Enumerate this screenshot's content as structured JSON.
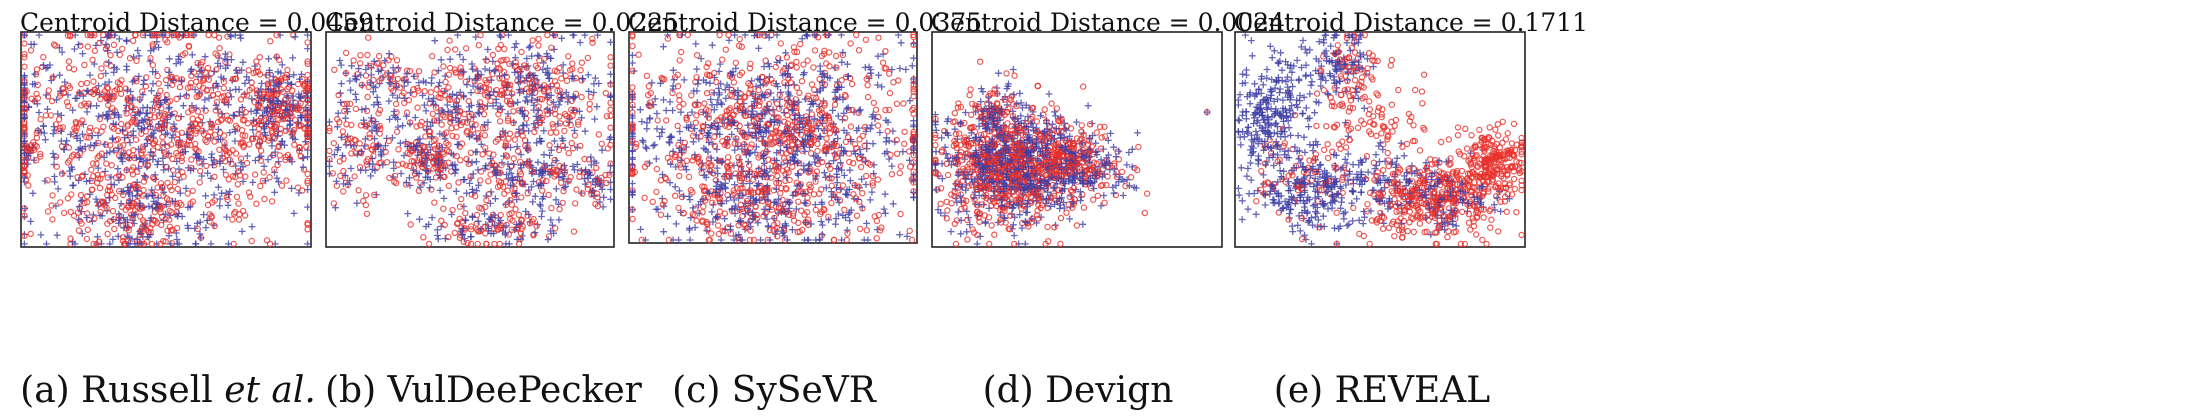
{
  "colors": {
    "series_circle": "#e8302b",
    "series_plus": "#3f3fa6"
  },
  "chart_data": [
    {
      "type": "scatter",
      "id": "a",
      "title": "Centroid Distance = 0.0459",
      "caption": {
        "prefix": "(a) Russell ",
        "emph": "et al.",
        "suffix": ""
      },
      "series": [
        {
          "marker": "circle",
          "color": "#e8302b",
          "count": 950
        },
        {
          "marker": "plus",
          "color": "#3f3fa6",
          "count": 800
        }
      ],
      "clusters": [
        {
          "cx": 0.45,
          "cy": 0.45,
          "sx": 0.28,
          "sy": 0.26,
          "w": 0.75
        },
        {
          "cx": 0.9,
          "cy": 0.35,
          "sx": 0.07,
          "sy": 0.12,
          "w": 0.15
        },
        {
          "cx": 0.4,
          "cy": 0.85,
          "sx": 0.12,
          "sy": 0.08,
          "w": 0.1
        },
        {
          "cx": 0.03,
          "cy": 0.56,
          "sx": 0.012,
          "sy": 0.025,
          "w": 0.01
        }
      ]
    },
    {
      "type": "scatter",
      "id": "b",
      "title": "Centroid Distance = 0.0225",
      "caption": {
        "prefix": "(b) VulDeePecker",
        "emph": "",
        "suffix": ""
      },
      "series": [
        {
          "marker": "circle",
          "color": "#e8302b",
          "count": 700
        },
        {
          "marker": "plus",
          "color": "#3f3fa6",
          "count": 700
        }
      ],
      "clusters": [
        {
          "cx": 0.72,
          "cy": 0.3,
          "sx": 0.14,
          "sy": 0.16,
          "w": 0.3
        },
        {
          "cx": 0.45,
          "cy": 0.35,
          "sx": 0.1,
          "sy": 0.13,
          "w": 0.15
        },
        {
          "cx": 0.12,
          "cy": 0.5,
          "sx": 0.07,
          "sy": 0.18,
          "w": 0.12
        },
        {
          "cx": 0.35,
          "cy": 0.6,
          "sx": 0.06,
          "sy": 0.08,
          "w": 0.1
        },
        {
          "cx": 0.68,
          "cy": 0.68,
          "sx": 0.14,
          "sy": 0.07,
          "w": 0.15
        },
        {
          "cx": 0.6,
          "cy": 0.92,
          "sx": 0.12,
          "sy": 0.05,
          "w": 0.1
        },
        {
          "cx": 0.95,
          "cy": 0.7,
          "sx": 0.03,
          "sy": 0.06,
          "w": 0.04
        },
        {
          "cx": 0.2,
          "cy": 0.2,
          "sx": 0.06,
          "sy": 0.05,
          "w": 0.04
        }
      ]
    },
    {
      "type": "scatter",
      "id": "c",
      "title": "Centroid Distance = 0.0375",
      "caption": {
        "prefix": "(c) SySeVR",
        "emph": "",
        "suffix": ""
      },
      "series": [
        {
          "marker": "circle",
          "color": "#e8302b",
          "count": 800
        },
        {
          "marker": "plus",
          "color": "#3f3fa6",
          "count": 800
        }
      ],
      "clusters": [
        {
          "cx": 0.5,
          "cy": 0.5,
          "sx": 0.27,
          "sy": 0.24,
          "w": 0.9
        },
        {
          "cx": 0.45,
          "cy": 0.85,
          "sx": 0.15,
          "sy": 0.08,
          "w": 0.1
        }
      ]
    },
    {
      "type": "scatter",
      "id": "d",
      "title": "Centroid Distance = 0.0024",
      "caption": {
        "prefix": "(d) Devign",
        "emph": "",
        "suffix": ""
      },
      "series": [
        {
          "marker": "circle",
          "color": "#e8302b",
          "count": 850
        },
        {
          "marker": "plus",
          "color": "#3f3fa6",
          "count": 850
        }
      ],
      "clusters": [
        {
          "cx": 0.26,
          "cy": 0.62,
          "sx": 0.12,
          "sy": 0.15,
          "w": 0.7
        },
        {
          "cx": 0.48,
          "cy": 0.62,
          "sx": 0.1,
          "sy": 0.09,
          "w": 0.25
        },
        {
          "cx": 0.21,
          "cy": 0.36,
          "sx": 0.04,
          "sy": 0.05,
          "w": 0.05
        }
      ],
      "outliers": [
        {
          "x": 0.955,
          "y": 0.37
        }
      ]
    },
    {
      "type": "scatter",
      "id": "e",
      "title": "Centroid Distance = 0.1711",
      "caption": {
        "prefix": "(e) R",
        "emph": "",
        "suffix": "",
        "smallcaps": "EVEAL"
      },
      "series": [
        {
          "marker": "circle",
          "color": "#e8302b",
          "count": 800
        },
        {
          "marker": "plus",
          "color": "#3f3fa6",
          "count": 800
        }
      ],
      "clusters_circle": [
        {
          "cx": 0.7,
          "cy": 0.78,
          "sx": 0.12,
          "sy": 0.09,
          "w": 0.45
        },
        {
          "cx": 0.9,
          "cy": 0.6,
          "sx": 0.06,
          "sy": 0.08,
          "w": 0.25
        },
        {
          "cx": 0.45,
          "cy": 0.45,
          "sx": 0.1,
          "sy": 0.15,
          "w": 0.15
        },
        {
          "cx": 0.4,
          "cy": 0.15,
          "sx": 0.05,
          "sy": 0.08,
          "w": 0.07
        },
        {
          "cx": 0.2,
          "cy": 0.7,
          "sx": 0.08,
          "sy": 0.1,
          "w": 0.08
        }
      ],
      "clusters_plus": [
        {
          "cx": 0.12,
          "cy": 0.4,
          "sx": 0.07,
          "sy": 0.14,
          "w": 0.3
        },
        {
          "cx": 0.25,
          "cy": 0.75,
          "sx": 0.1,
          "sy": 0.1,
          "w": 0.3
        },
        {
          "cx": 0.35,
          "cy": 0.15,
          "sx": 0.06,
          "sy": 0.08,
          "w": 0.15
        },
        {
          "cx": 0.55,
          "cy": 0.7,
          "sx": 0.1,
          "sy": 0.08,
          "w": 0.15
        },
        {
          "cx": 0.75,
          "cy": 0.8,
          "sx": 0.08,
          "sy": 0.07,
          "w": 0.1
        }
      ]
    }
  ]
}
